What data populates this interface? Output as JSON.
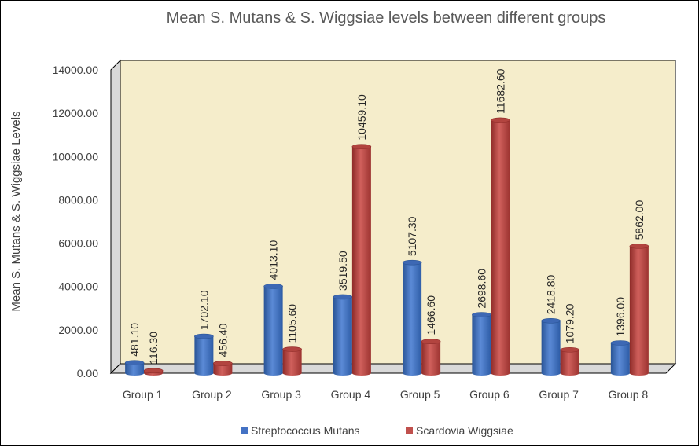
{
  "chart_data": {
    "type": "bar",
    "title": "Mean S. Mutans & S. Wiggsiae levels between different groups",
    "xlabel": "",
    "ylabel": "Mean S. Mutans & S. Wiggsiae Levels",
    "ylim": [
      0,
      14000
    ],
    "yticks": [
      "0.00",
      "2000.00",
      "4000.00",
      "6000.00",
      "8000.00",
      "10000.00",
      "12000.00",
      "14000.00"
    ],
    "categories": [
      "Group 1",
      "Group 2",
      "Group 3",
      "Group 4",
      "Group 5",
      "Group 6",
      "Group 7",
      "Group 8"
    ],
    "series": [
      {
        "name": "Streptococcus Mutans",
        "values": [
          481.1,
          1702.1,
          4013.1,
          3519.5,
          5107.3,
          2698.6,
          2418.8,
          1396.0
        ],
        "labels": [
          "481.10",
          "1702.10",
          "4013.10",
          "3519.50",
          "5107.30",
          "2698.60",
          "2418.80",
          "1396.00"
        ],
        "color": "#4472C4"
      },
      {
        "name": "Scardovia Wiggsiae",
        "values": [
          116.3,
          456.4,
          1105.6,
          10459.1,
          1466.6,
          11682.6,
          1079.2,
          5862.0
        ],
        "labels": [
          "116.30",
          "456.40",
          "1105.60",
          "10459.10",
          "1466.60",
          "11682.60",
          "1079.20",
          "5862.00"
        ],
        "color": "#C0504D"
      }
    ],
    "legend_position": "bottom",
    "plot_background": "#F5EDCB",
    "grid": false
  }
}
